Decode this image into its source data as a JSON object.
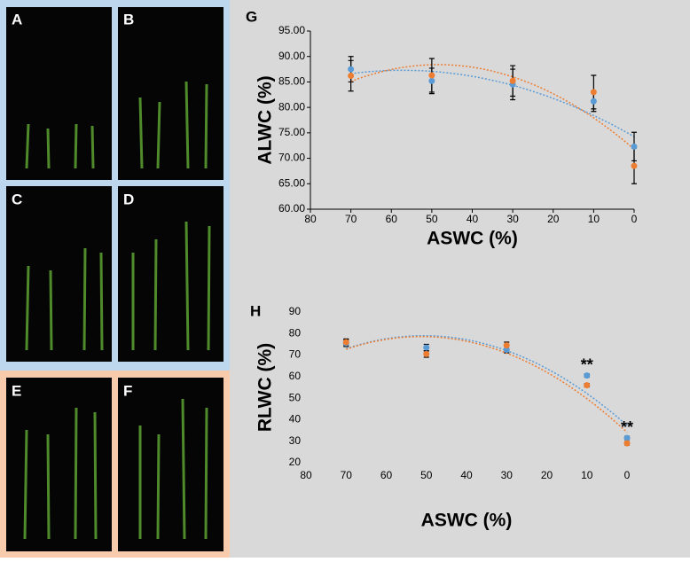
{
  "panels": [
    "A",
    "B",
    "C",
    "D",
    "E",
    "F"
  ],
  "chart_data": [
    {
      "type": "scatter",
      "panel": "G",
      "xlabel": "ASWC (%)",
      "ylabel": "ALWC (%)",
      "x": [
        70,
        50,
        30,
        10,
        0
      ],
      "series": [
        {
          "color": "#5b9bd5",
          "values": [
            87.5,
            85.2,
            84.5,
            81.2,
            72.3
          ],
          "errors": [
            2.5,
            2.5,
            3,
            2,
            2.8
          ]
        },
        {
          "color": "#ed7d31",
          "values": [
            86.2,
            86.3,
            85.2,
            83.0,
            68.5
          ],
          "errors": [
            3,
            3.3,
            3,
            3.3,
            3.5
          ]
        }
      ],
      "xlim": [
        80,
        0
      ],
      "xticks": [
        80,
        70,
        60,
        50,
        40,
        30,
        20,
        10,
        0
      ],
      "ylim": [
        60,
        95
      ],
      "yticks": [
        {
          "value": 60,
          "label": "60.00"
        },
        {
          "value": 65,
          "label": "65.00"
        },
        {
          "value": 70,
          "label": "70.00"
        },
        {
          "value": 75,
          "label": "75.00"
        },
        {
          "value": 80,
          "label": "80.00"
        },
        {
          "value": 85,
          "label": "85.00"
        },
        {
          "value": 90,
          "label": "90.00"
        },
        {
          "value": 95,
          "label": "95.00"
        }
      ],
      "trendline": true,
      "axis_lines": true
    },
    {
      "type": "scatter",
      "panel": "H",
      "xlabel": "ASWC (%)",
      "ylabel": "RLWC (%)",
      "x": [
        70,
        50,
        30,
        10,
        0
      ],
      "series": [
        {
          "color": "#5b9bd5",
          "values": [
            75.5,
            73.5,
            72.5,
            60.5,
            31.5
          ],
          "errors": [
            1.5,
            1.5,
            1.5,
            0.8,
            0.8
          ]
        },
        {
          "color": "#ed7d31",
          "values": [
            76,
            70.5,
            74.5,
            56,
            29
          ],
          "errors": [
            1.5,
            1.5,
            1.5,
            0.8,
            0.8
          ]
        }
      ],
      "xlim": [
        80,
        0
      ],
      "xticks": [
        80,
        70,
        60,
        50,
        40,
        30,
        20,
        10,
        0
      ],
      "ylim": [
        20,
        90
      ],
      "yticks": [
        20,
        30,
        40,
        50,
        60,
        70,
        80,
        90
      ],
      "annotations": [
        {
          "text": "**",
          "x": 10,
          "y": 65
        },
        {
          "text": "**",
          "x": 0,
          "y": 36
        }
      ],
      "trendline": true,
      "axis_lines": false
    }
  ]
}
